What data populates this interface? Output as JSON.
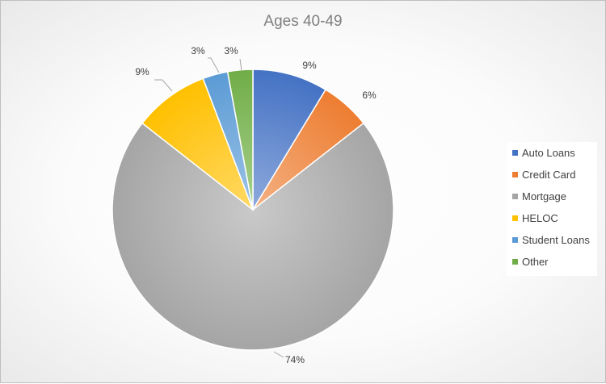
{
  "chart_data": {
    "type": "pie",
    "title": "Ages 40-49",
    "categories": [
      "Auto Loans",
      "Credit Card",
      "Mortgage",
      "HELOC",
      "Student Loans",
      "Other"
    ],
    "values": [
      9,
      6,
      74,
      9,
      3,
      3
    ],
    "value_labels": [
      "9%",
      "6%",
      "74%",
      "9%",
      "3%",
      "3%"
    ],
    "start_angle_deg": 0,
    "direction": "clockwise",
    "legend_position": "right",
    "colors": [
      "#4472c4",
      "#ed7d31",
      "#a5a5a5",
      "#ffc000",
      "#5b9bd5",
      "#70ad47"
    ],
    "light_colors": [
      "#8faadc",
      "#f4b183",
      "#c9c9c9",
      "#ffd966",
      "#9dc3e6",
      "#a9d18e"
    ]
  }
}
